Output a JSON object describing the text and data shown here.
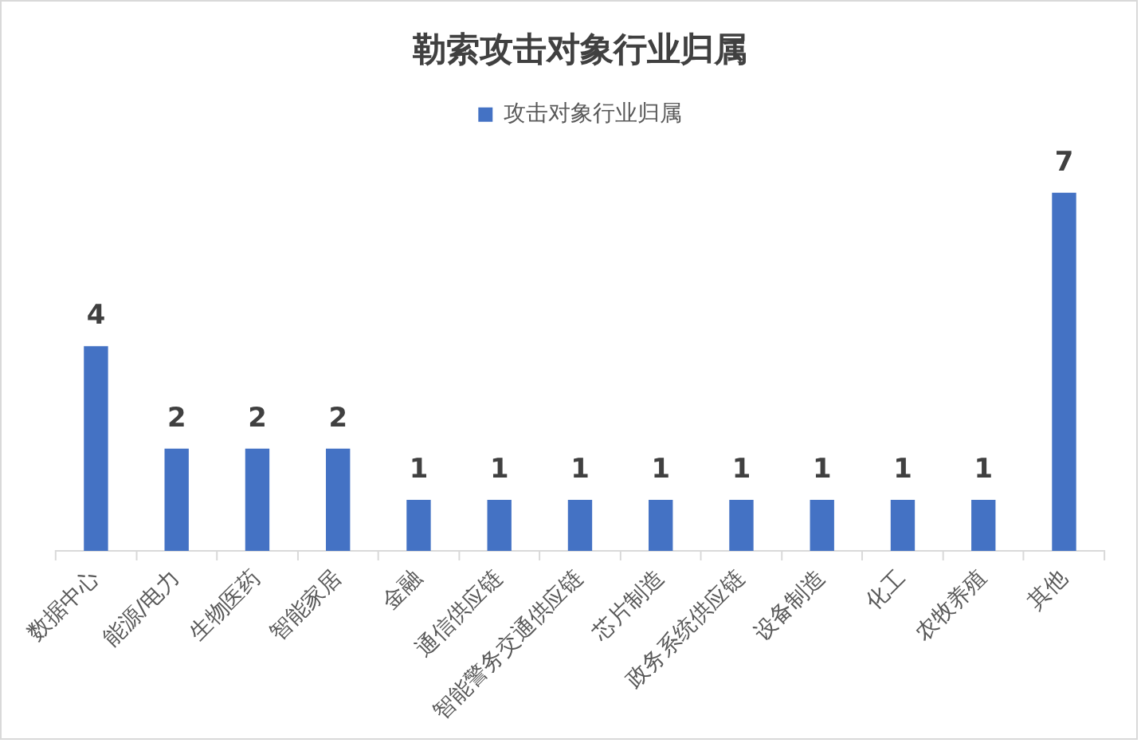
{
  "chart_data": {
    "type": "bar",
    "title": "勒索攻击对象行业归属",
    "categories": [
      "数据中心",
      "能源/电力",
      "生物医药",
      "智能家居",
      "金融",
      "通信供应链",
      "智能警务交通供应链",
      "芯片制造",
      "政务系统供应链",
      "设备制造",
      "化工",
      "农牧养殖",
      "其他"
    ],
    "series": [
      {
        "name": "攻击对象行业归属",
        "color": "#4472c4",
        "values": [
          4,
          2,
          2,
          2,
          1,
          1,
          1,
          1,
          1,
          1,
          1,
          1,
          7
        ]
      }
    ],
    "data_labels": true,
    "legend": "top",
    "grid": false,
    "tick_labels": "x"
  }
}
